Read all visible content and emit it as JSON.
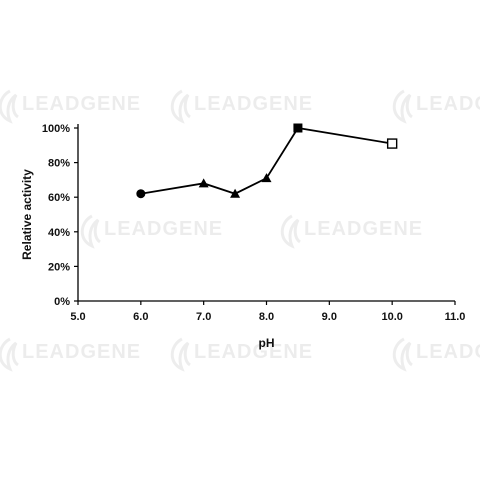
{
  "watermark": {
    "text": "LEADGENE"
  },
  "chart_data": {
    "type": "line",
    "title": "",
    "xlabel": "pH",
    "ylabel": "Relative activity",
    "xlim": [
      5.0,
      11.0
    ],
    "ylim": [
      0,
      100
    ],
    "xticks": [
      "5.0",
      "6.0",
      "7.0",
      "8.0",
      "9.0",
      "10.0",
      "11.0"
    ],
    "yticks": [
      "0%",
      "20%",
      "40%",
      "60%",
      "80%",
      "100%"
    ],
    "grid": false,
    "legend": "none",
    "series": [
      {
        "line_color": "#000000",
        "points": [
          {
            "x": 6.0,
            "y": 62,
            "marker": "circle-filled"
          },
          {
            "x": 7.0,
            "y": 68,
            "marker": "triangle-filled"
          },
          {
            "x": 7.5,
            "y": 62,
            "marker": "triangle-filled"
          },
          {
            "x": 8.0,
            "y": 71,
            "marker": "triangle-filled"
          },
          {
            "x": 8.5,
            "y": 100,
            "marker": "square-filled"
          },
          {
            "x": 10.0,
            "y": 91,
            "marker": "square-open"
          }
        ]
      }
    ]
  }
}
